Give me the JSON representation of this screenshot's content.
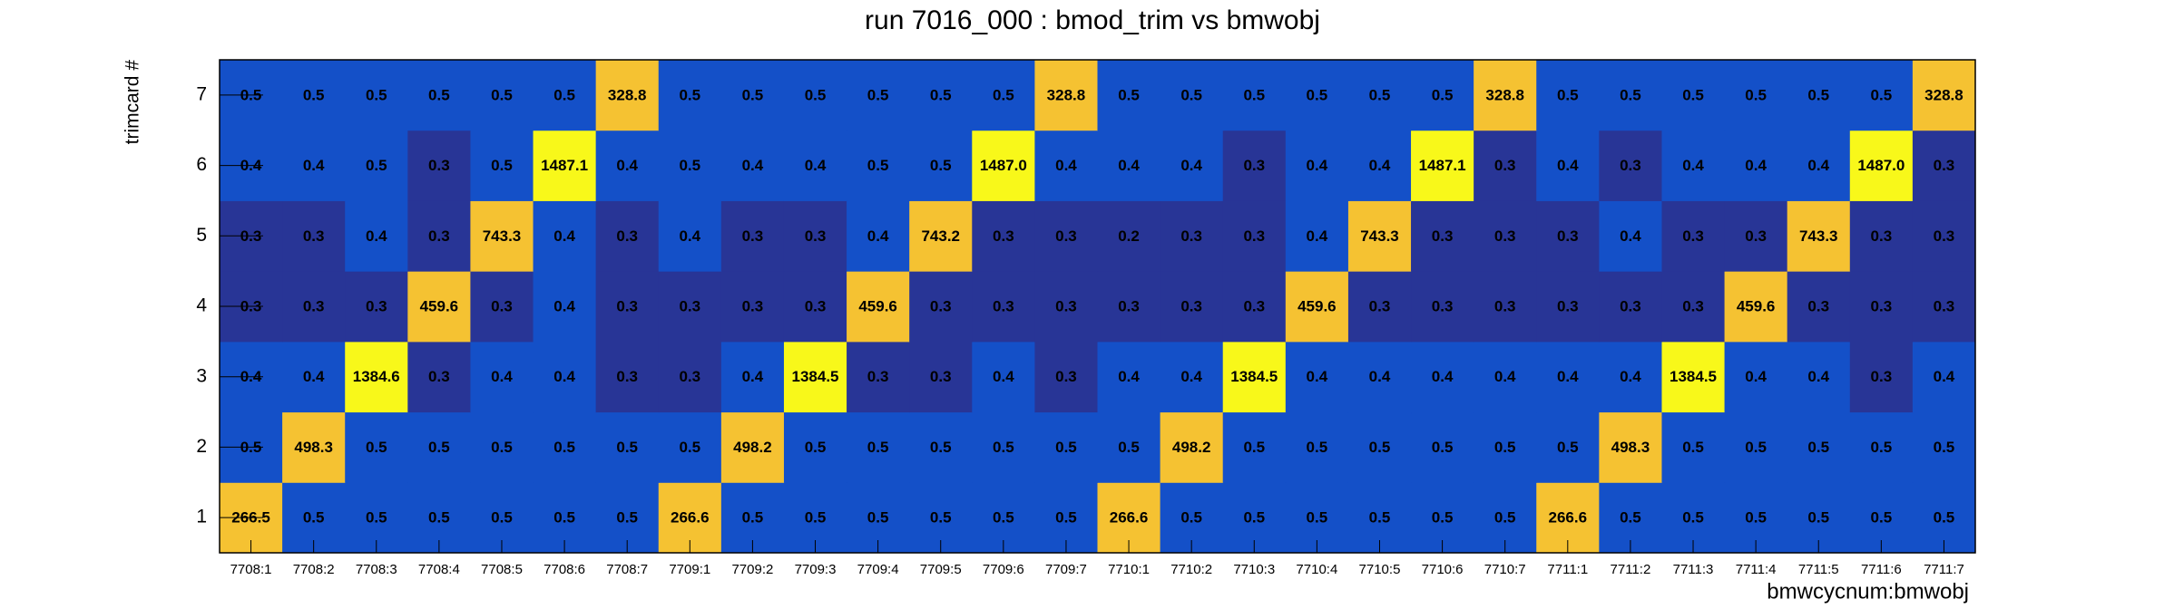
{
  "chart_data": {
    "type": "heatmap",
    "title": "run 7016_000 : bmod_trim vs bmwobj",
    "x_label": "bmwcycnum:bmwobj",
    "y_label": "trimcard #",
    "x_categories": [
      "7708:1",
      "7708:2",
      "7708:3",
      "7708:4",
      "7708:5",
      "7708:6",
      "7708:7",
      "7709:1",
      "7709:2",
      "7709:3",
      "7709:4",
      "7709:5",
      "7709:6",
      "7709:7",
      "7710:1",
      "7710:2",
      "7710:3",
      "7710:4",
      "7710:5",
      "7710:6",
      "7710:7",
      "7711:1",
      "7711:2",
      "7711:3",
      "7711:4",
      "7711:5",
      "7711:6",
      "7711:7"
    ],
    "y_categories": [
      1,
      2,
      3,
      4,
      5,
      6,
      7
    ],
    "values": [
      [
        266.5,
        0.5,
        0.5,
        0.5,
        0.5,
        0.5,
        0.5,
        266.6,
        0.5,
        0.5,
        0.5,
        0.5,
        0.5,
        0.5,
        266.6,
        0.5,
        0.5,
        0.5,
        0.5,
        0.5,
        0.5,
        266.6,
        0.5,
        0.5,
        0.5,
        0.5,
        0.5,
        0.5
      ],
      [
        0.5,
        498.3,
        0.5,
        0.5,
        0.5,
        0.5,
        0.5,
        0.5,
        498.2,
        0.5,
        0.5,
        0.5,
        0.5,
        0.5,
        0.5,
        498.2,
        0.5,
        0.5,
        0.5,
        0.5,
        0.5,
        0.5,
        498.3,
        0.5,
        0.5,
        0.5,
        0.5,
        0.5
      ],
      [
        0.4,
        0.4,
        1384.6,
        0.3,
        0.4,
        0.4,
        0.3,
        0.3,
        0.4,
        1384.5,
        0.3,
        0.3,
        0.4,
        0.3,
        0.4,
        0.4,
        1384.5,
        0.4,
        0.4,
        0.4,
        0.4,
        0.4,
        0.4,
        1384.5,
        0.4,
        0.4,
        0.3,
        0.4
      ],
      [
        0.3,
        0.3,
        0.3,
        459.6,
        0.3,
        0.4,
        0.3,
        0.3,
        0.3,
        0.3,
        459.6,
        0.3,
        0.3,
        0.3,
        0.3,
        0.3,
        0.3,
        459.6,
        0.3,
        0.3,
        0.3,
        0.3,
        0.3,
        0.3,
        459.6,
        0.3,
        0.3,
        0.3
      ],
      [
        0.3,
        0.3,
        0.4,
        0.3,
        743.3,
        0.4,
        0.3,
        0.4,
        0.3,
        0.3,
        0.4,
        743.2,
        0.3,
        0.3,
        0.2,
        0.3,
        0.3,
        0.4,
        743.3,
        0.3,
        0.3,
        0.3,
        0.4,
        0.3,
        0.3,
        743.3,
        0.3,
        0.3
      ],
      [
        0.4,
        0.4,
        0.5,
        0.3,
        0.5,
        1487.1,
        0.4,
        0.5,
        0.4,
        0.4,
        0.5,
        0.5,
        1487.0,
        0.4,
        0.4,
        0.4,
        0.3,
        0.4,
        0.4,
        1487.1,
        0.3,
        0.4,
        0.3,
        0.4,
        0.4,
        0.4,
        1487.0,
        0.3
      ],
      [
        0.5,
        0.5,
        0.5,
        0.5,
        0.5,
        0.5,
        328.8,
        0.5,
        0.5,
        0.5,
        0.5,
        0.5,
        0.5,
        328.8,
        0.5,
        0.5,
        0.5,
        0.5,
        0.5,
        0.5,
        328.8,
        0.5,
        0.5,
        0.5,
        0.5,
        0.5,
        0.5,
        328.8
      ]
    ],
    "value_labels": [
      [
        "266.5",
        "0.5",
        "0.5",
        "0.5",
        "0.5",
        "0.5",
        "0.5",
        "266.6",
        "0.5",
        "0.5",
        "0.5",
        "0.5",
        "0.5",
        "0.5",
        "266.6",
        "0.5",
        "0.5",
        "0.5",
        "0.5",
        "0.5",
        "0.5",
        "266.6",
        "0.5",
        "0.5",
        "0.5",
        "0.5",
        "0.5",
        "0.5"
      ],
      [
        "0.5",
        "498.3",
        "0.5",
        "0.5",
        "0.5",
        "0.5",
        "0.5",
        "0.5",
        "498.2",
        "0.5",
        "0.5",
        "0.5",
        "0.5",
        "0.5",
        "0.5",
        "498.2",
        "0.5",
        "0.5",
        "0.5",
        "0.5",
        "0.5",
        "0.5",
        "498.3",
        "0.5",
        "0.5",
        "0.5",
        "0.5",
        "0.5"
      ],
      [
        "0.4",
        "0.4",
        "1384.6",
        "0.3",
        "0.4",
        "0.4",
        "0.3",
        "0.3",
        "0.4",
        "1384.5",
        "0.3",
        "0.3",
        "0.4",
        "0.3",
        "0.4",
        "0.4",
        "1384.5",
        "0.4",
        "0.4",
        "0.4",
        "0.4",
        "0.4",
        "0.4",
        "1384.5",
        "0.4",
        "0.4",
        "0.3",
        "0.4"
      ],
      [
        "0.3",
        "0.3",
        "0.3",
        "459.6",
        "0.3",
        "0.4",
        "0.3",
        "0.3",
        "0.3",
        "0.3",
        "459.6",
        "0.3",
        "0.3",
        "0.3",
        "0.3",
        "0.3",
        "0.3",
        "459.6",
        "0.3",
        "0.3",
        "0.3",
        "0.3",
        "0.3",
        "0.3",
        "459.6",
        "0.3",
        "0.3",
        "0.3"
      ],
      [
        "0.3",
        "0.3",
        "0.4",
        "0.3",
        "743.3",
        "0.4",
        "0.3",
        "0.4",
        "0.3",
        "0.3",
        "0.4",
        "743.2",
        "0.3",
        "0.3",
        "0.2",
        "0.3",
        "0.3",
        "0.4",
        "743.3",
        "0.3",
        "0.3",
        "0.3",
        "0.4",
        "0.3",
        "0.3",
        "743.3",
        "0.3",
        "0.3"
      ],
      [
        "0.4",
        "0.4",
        "0.5",
        "0.3",
        "0.5",
        "1487.1",
        "0.4",
        "0.5",
        "0.4",
        "0.4",
        "0.5",
        "0.5",
        "1487.0",
        "0.4",
        "0.4",
        "0.4",
        "0.3",
        "0.4",
        "0.4",
        "1487.1",
        "0.3",
        "0.4",
        "0.3",
        "0.4",
        "0.4",
        "0.4",
        "1487.0",
        "0.3"
      ],
      [
        "0.5",
        "0.5",
        "0.5",
        "0.5",
        "0.5",
        "0.5",
        "328.8",
        "0.5",
        "0.5",
        "0.5",
        "0.5",
        "0.5",
        "0.5",
        "328.8",
        "0.5",
        "0.5",
        "0.5",
        "0.5",
        "0.5",
        "0.5",
        "328.8",
        "0.5",
        "0.5",
        "0.5",
        "0.5",
        "0.5",
        "0.5",
        "328.8"
      ]
    ],
    "color_scale": [
      {
        "below": 0.4,
        "color": "#283596"
      },
      {
        "below": 100,
        "color": "#1450c8"
      },
      {
        "below": 1000,
        "color": "#f5c232"
      },
      {
        "below": 100000,
        "color": "#f8f81a"
      }
    ]
  }
}
